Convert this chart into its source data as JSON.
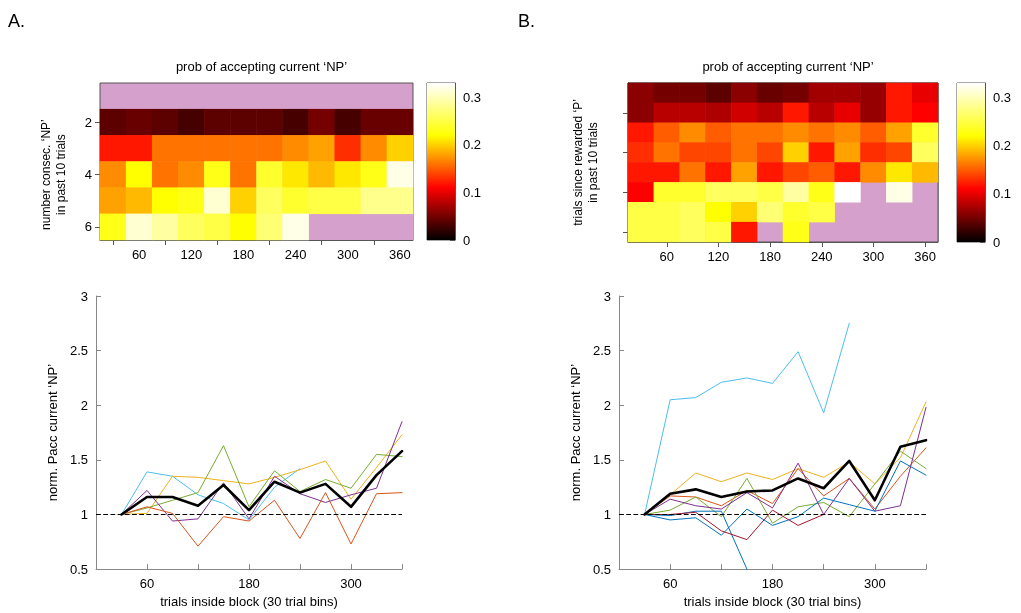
{
  "chart_data": [
    {
      "type": "heatmap",
      "title": "prob of accepting current ‘NP’",
      "ylabel": "number consec. ‘NP’\nin past 10 trials",
      "annotations": [
        "A."
      ],
      "categories": [
        null,
        "60",
        null,
        "120",
        null,
        "180",
        null,
        "240",
        null,
        "300",
        null,
        "360"
      ],
      "y_categories": [
        "2",
        null,
        "4",
        null,
        "6"
      ],
      "cells": [
        [
          0.04,
          0.045,
          0.04,
          0.03,
          0.04,
          0.04,
          0.04,
          0.03,
          0.05,
          0.03,
          0.045,
          0.045
        ],
        [
          0.12,
          0.12,
          0.16,
          0.16,
          0.16,
          0.16,
          0.16,
          0.17,
          0.18,
          0.13,
          0.17,
          0.2
        ],
        [
          0.17,
          0.22,
          0.16,
          0.17,
          0.23,
          0.16,
          0.24,
          0.21,
          0.19,
          0.21,
          0.23,
          0.32
        ],
        [
          0.18,
          0.19,
          0.22,
          0.23,
          0.31,
          0.2,
          0.26,
          0.24,
          0.25,
          0.25,
          0.28,
          0.28
        ],
        [
          0.23,
          0.31,
          0.29,
          0.26,
          0.25,
          0.22,
          0.27,
          0.32,
          null,
          null,
          null,
          null
        ]
      ],
      "clim": [
        0,
        0.33
      ],
      "cticks": [
        0,
        0.1,
        0.2,
        0.3
      ]
    },
    {
      "type": "heatmap",
      "title": "prob of accepting current ‘NP’",
      "ylabel": "trials since rewarded ‘P’\nin past 10 trials",
      "annotations": [
        "B."
      ],
      "tick_labels": "x",
      "categories": [
        null,
        "60",
        null,
        "120",
        null,
        "180",
        null,
        "240",
        null,
        "300",
        null,
        "360"
      ],
      "y_categories": [
        null,
        null,
        null,
        null,
        null,
        null,
        null,
        null
      ],
      "cells": [
        [
          0.06,
          0.05,
          0.05,
          0.04,
          0.06,
          0.045,
          0.05,
          0.07,
          0.07,
          0.065,
          0.12,
          0.1
        ],
        [
          0.06,
          0.08,
          0.08,
          0.075,
          0.09,
          0.08,
          0.12,
          0.08,
          0.1,
          0.065,
          0.12,
          0.11
        ],
        [
          0.12,
          0.15,
          0.17,
          0.15,
          0.16,
          0.16,
          0.17,
          0.16,
          0.17,
          0.15,
          0.18,
          0.24
        ],
        [
          0.13,
          0.16,
          0.14,
          0.14,
          0.16,
          0.14,
          0.2,
          0.12,
          0.18,
          0.13,
          0.14,
          0.26
        ],
        [
          0.12,
          0.12,
          0.16,
          0.12,
          0.18,
          0.12,
          0.14,
          0.15,
          0.12,
          0.17,
          0.21,
          0.19
        ],
        [
          0.11,
          0.24,
          0.24,
          0.26,
          0.26,
          0.25,
          0.29,
          0.23,
          0.33,
          null,
          0.32,
          null
        ],
        [
          0.25,
          0.25,
          0.26,
          0.22,
          0.2,
          0.27,
          0.24,
          0.25,
          null,
          null,
          null,
          null
        ],
        [
          0.25,
          0.25,
          0.26,
          0.25,
          0.12,
          null,
          0.23,
          null,
          null,
          null,
          null,
          null
        ]
      ],
      "clim": [
        0,
        0.33
      ],
      "cticks": [
        0,
        0.1,
        0.2,
        0.3
      ]
    },
    {
      "type": "line",
      "xlabel": "trials inside block (30 trial bins)",
      "ylabel": "norm. Pacc current ‘NP’",
      "x": [
        30,
        60,
        90,
        120,
        150,
        180,
        210,
        240,
        270,
        300,
        330,
        360
      ],
      "xlim": [
        0,
        360
      ],
      "xticks": [
        60,
        {
          "value": 120,
          "label": null
        },
        180,
        {
          "value": 240,
          "label": null
        },
        300,
        {
          "value": 360,
          "label": null
        }
      ],
      "ylim": [
        0.5,
        3
      ],
      "yticks": [
        0.5,
        1,
        1.5,
        2,
        2.5,
        3
      ],
      "ref_lines": [
        {
          "axis": "y",
          "value": 1,
          "color": "#000000",
          "line_style": "dashed"
        }
      ],
      "series": [
        {
          "color": "#000000",
          "values": [
            1.0,
            1.16,
            1.16,
            1.08,
            1.27,
            1.04,
            1.3,
            1.2,
            1.28,
            1.07,
            1.36,
            1.58
          ]
        },
        {
          "color": "#4dbeee",
          "values": [
            1.0,
            1.39,
            1.35,
            1.18,
            1.1,
            0.95,
            1.25,
            1.42,
            null,
            null,
            null,
            null
          ]
        },
        {
          "color": "#edb120",
          "values": [
            1.0,
            1.01,
            1.35,
            1.34,
            1.31,
            1.28,
            1.34,
            1.41,
            1.49,
            1.14,
            1.43,
            1.73
          ]
        },
        {
          "color": "#77ac30",
          "values": [
            1.0,
            1.06,
            1.13,
            1.2,
            1.63,
            1.07,
            1.4,
            1.21,
            1.32,
            1.24,
            1.55,
            1.53
          ]
        },
        {
          "color": "#7e2f8e",
          "values": [
            1.0,
            1.22,
            0.94,
            0.96,
            1.29,
            0.96,
            1.35,
            1.19,
            1.11,
            1.18,
            1.24,
            1.85
          ]
        },
        {
          "color": "#d95319",
          "values": [
            1.0,
            1.07,
            1.01,
            0.71,
            0.98,
            0.94,
            1.13,
            0.78,
            1.2,
            0.73,
            1.19,
            1.2
          ]
        }
      ]
    },
    {
      "type": "line",
      "xlabel": "trials inside block (30 trial bins)",
      "ylabel": "norm. Pacc current ‘NP’",
      "x": [
        30,
        60,
        90,
        120,
        150,
        180,
        210,
        240,
        270,
        300,
        330,
        360
      ],
      "xlim": [
        0,
        360
      ],
      "xticks": [
        60,
        {
          "value": 120,
          "label": null
        },
        180,
        {
          "value": 240,
          "label": null
        },
        300,
        {
          "value": 360,
          "label": null
        }
      ],
      "ylim": [
        0.5,
        3
      ],
      "yticks": [
        0.5,
        1,
        1.5,
        2,
        2.5,
        3
      ],
      "ref_lines": [
        {
          "axis": "y",
          "value": 1,
          "color": "#000000",
          "line_style": "dashed"
        }
      ],
      "series": [
        {
          "color": "#000000",
          "values": [
            1.0,
            1.19,
            1.23,
            1.16,
            1.21,
            1.22,
            1.33,
            1.24,
            1.49,
            1.13,
            1.62,
            1.68
          ]
        },
        {
          "color": "#4dbeee",
          "values": [
            1.0,
            2.05,
            2.07,
            2.21,
            2.25,
            2.2,
            2.49,
            1.93,
            2.75,
            null,
            null,
            null
          ]
        },
        {
          "color": "#edb120",
          "values": [
            1.0,
            1.18,
            1.38,
            1.3,
            1.38,
            1.32,
            1.42,
            1.34,
            1.48,
            1.28,
            1.52,
            2.03
          ]
        },
        {
          "color": "#d95319",
          "values": [
            1.0,
            1.17,
            1.16,
            1.08,
            1.22,
            1.1,
            1.42,
            1.17,
            1.33,
            1.05,
            1.35,
            1.61
          ]
        },
        {
          "color": "#77ac30",
          "values": [
            1.0,
            1.04,
            1.16,
            0.98,
            1.33,
            0.92,
            1.07,
            1.11,
            0.98,
            1.28,
            1.58,
            1.42
          ]
        },
        {
          "color": "#7e2f8e",
          "values": [
            1.0,
            1.14,
            1.08,
            1.05,
            1.2,
            1.06,
            1.47,
            1.0,
            1.33,
            1.03,
            1.08,
            1.98
          ]
        },
        {
          "color": "#0072bd",
          "values": [
            1.0,
            0.95,
            0.97,
            0.81,
            1.05,
            0.9,
            0.98,
            1.15,
            1.09,
            1.03,
            1.49,
            1.36
          ]
        },
        {
          "color": "#0072bd",
          "values": [
            1.0,
            0.99,
            1.03,
            1.03,
            0.5,
            null,
            null,
            null,
            null,
            null,
            null,
            null
          ]
        },
        {
          "color": "#a2142f",
          "values": [
            1.0,
            1.0,
            1.02,
            0.85,
            0.77,
            1.04,
            0.9,
            1.0,
            null,
            null,
            null,
            null
          ]
        }
      ]
    }
  ]
}
